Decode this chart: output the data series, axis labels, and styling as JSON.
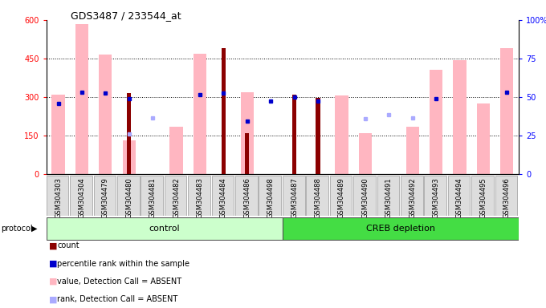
{
  "title": "GDS3487 / 233544_at",
  "samples": [
    "GSM304303",
    "GSM304304",
    "GSM304479",
    "GSM304480",
    "GSM304481",
    "GSM304482",
    "GSM304483",
    "GSM304484",
    "GSM304486",
    "GSM304498",
    "GSM304487",
    "GSM304488",
    "GSM304489",
    "GSM304490",
    "GSM304491",
    "GSM304492",
    "GSM304493",
    "GSM304494",
    "GSM304495",
    "GSM304496"
  ],
  "ylim_left": [
    0,
    600
  ],
  "ylim_right": [
    0,
    100
  ],
  "yticks_left": [
    0,
    150,
    300,
    450,
    600
  ],
  "yticks_right": [
    0,
    25,
    50,
    75,
    100
  ],
  "groups": [
    {
      "label": "control",
      "start": 0,
      "end": 10,
      "color": "#ccffcc"
    },
    {
      "label": "CREB depletion",
      "start": 10,
      "end": 20,
      "color": "#44dd44"
    }
  ],
  "dark_red_bars": {
    "color": "#8b0000",
    "data": [
      null,
      null,
      null,
      315,
      null,
      null,
      null,
      490,
      160,
      null,
      310,
      298,
      null,
      null,
      null,
      null,
      null,
      null,
      null,
      null
    ]
  },
  "pink_bars": {
    "color": "#ffb6c1",
    "data": [
      310,
      585,
      465,
      130,
      null,
      185,
      470,
      null,
      320,
      null,
      null,
      null,
      305,
      160,
      null,
      185,
      405,
      445,
      275,
      490
    ]
  },
  "blue_squares": {
    "color": "#0000cc",
    "data": [
      275,
      320,
      315,
      295,
      null,
      null,
      310,
      315,
      205,
      285,
      300,
      285,
      null,
      null,
      null,
      null,
      295,
      null,
      null,
      320
    ]
  },
  "light_blue_squares": {
    "color": "#aaaaff",
    "data": [
      null,
      null,
      null,
      155,
      220,
      null,
      null,
      null,
      null,
      null,
      null,
      null,
      null,
      215,
      230,
      220,
      null,
      null,
      null,
      null
    ]
  },
  "legend": [
    {
      "color": "#8b0000",
      "label": "count"
    },
    {
      "color": "#0000cc",
      "label": "percentile rank within the sample"
    },
    {
      "color": "#ffb6c1",
      "label": "value, Detection Call = ABSENT"
    },
    {
      "color": "#aaaaff",
      "label": "rank, Detection Call = ABSENT"
    }
  ],
  "pink_bar_width": 0.55,
  "dark_red_bar_width": 0.18,
  "title_fontsize": 9,
  "tick_fontsize": 6,
  "ytick_fontsize": 7,
  "ctrl_color": "#ccffcc",
  "creb_color": "#44dd44"
}
